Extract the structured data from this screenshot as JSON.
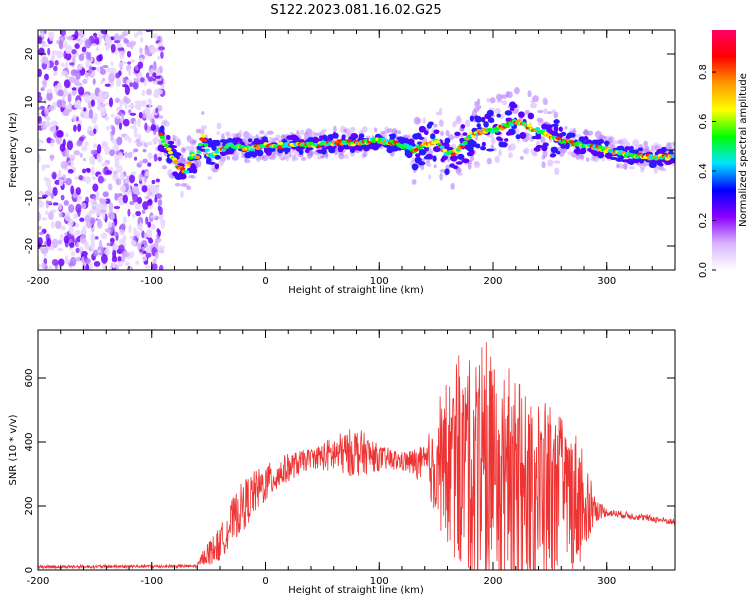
{
  "title": "S122.2023.081.16.02.G25",
  "chart_data": [
    {
      "type": "heatmap",
      "xlabel": "Height of straight line (km)",
      "ylabel": "Frequency (Hz)",
      "xlim": [
        -200,
        360
      ],
      "ylim": [
        -25,
        25
      ],
      "xticks": [
        "-200",
        "-100",
        "0",
        "100",
        "200",
        "300"
      ],
      "xtick_values": [
        -200,
        -100,
        0,
        100,
        200,
        300
      ],
      "yticks": [
        "-20",
        "-10",
        "0",
        "10",
        "20"
      ],
      "ytick_values": [
        -20,
        -10,
        0,
        10,
        20
      ],
      "colorbar": {
        "label": "Normalized spectral amplitude",
        "range": [
          0,
          0.97
        ],
        "ticks": [
          "0.0",
          "0.2",
          "0.4",
          "0.6",
          "0.8"
        ],
        "tick_values": [
          0.0,
          0.2,
          0.4,
          0.6,
          0.8
        ],
        "colors": [
          "#ffffff",
          "#d9b3ff",
          "#8a00ff",
          "#0000ff",
          "#00e5ff",
          "#00ff00",
          "#ffff00",
          "#ff9900",
          "#ff0000",
          "#ff0066"
        ]
      },
      "ridge": {
        "x": [
          -92,
          -85,
          -78,
          -70,
          -65,
          -60,
          -55,
          -50,
          -45,
          -40,
          -30,
          -20,
          -10,
          0,
          20,
          40,
          60,
          80,
          100,
          120,
          130,
          140,
          150,
          160,
          170,
          180,
          190,
          200,
          210,
          220,
          230,
          240,
          250,
          260,
          280,
          300,
          320,
          340,
          360
        ],
        "y": [
          3,
          0,
          -3,
          -5,
          -1,
          -2,
          3,
          -1,
          -1,
          0,
          1,
          0.5,
          0.5,
          1,
          1,
          1,
          1.5,
          1.5,
          2,
          1,
          0,
          1,
          2,
          -1,
          0,
          3,
          4,
          4,
          5,
          6,
          5,
          4,
          3,
          2,
          1,
          0,
          -1,
          -1.5,
          -1.5
        ]
      },
      "noise_region_x": [
        -200,
        -90
      ]
    },
    {
      "type": "line",
      "xlabel": "Height of straight line (km)",
      "ylabel": "SNR (10 * v/v)",
      "xlim": [
        -200,
        360
      ],
      "ylim": [
        0,
        750
      ],
      "xticks": [
        "-200",
        "-100",
        "0",
        "100",
        "200",
        "300"
      ],
      "xtick_values": [
        -200,
        -100,
        0,
        100,
        200,
        300
      ],
      "yticks": [
        "0",
        "200",
        "400",
        "600"
      ],
      "ytick_values": [
        0,
        200,
        400,
        600
      ],
      "series_color": "#ee3333",
      "envelope": {
        "x": [
          -200,
          -60,
          -55,
          -40,
          -30,
          -20,
          -10,
          0,
          20,
          40,
          60,
          80,
          100,
          120,
          140,
          150,
          160,
          170,
          180,
          190,
          200,
          220,
          240,
          260,
          280,
          290,
          300,
          320,
          340,
          360
        ],
        "y": [
          10,
          12,
          40,
          80,
          150,
          200,
          240,
          270,
          320,
          350,
          360,
          370,
          350,
          340,
          330,
          330,
          330,
          320,
          300,
          280,
          260,
          250,
          240,
          230,
          220,
          190,
          180,
          170,
          160,
          150
        ]
      },
      "noise_amplitude": {
        "x": [
          -200,
          -60,
          -50,
          -20,
          0,
          40,
          60,
          80,
          100,
          120,
          140,
          160,
          180,
          190,
          200,
          240,
          280,
          290,
          300,
          360
        ],
        "y": [
          5,
          5,
          40,
          80,
          60,
          30,
          60,
          80,
          40,
          30,
          60,
          280,
          360,
          420,
          380,
          300,
          200,
          40,
          12,
          10
        ]
      }
    }
  ]
}
